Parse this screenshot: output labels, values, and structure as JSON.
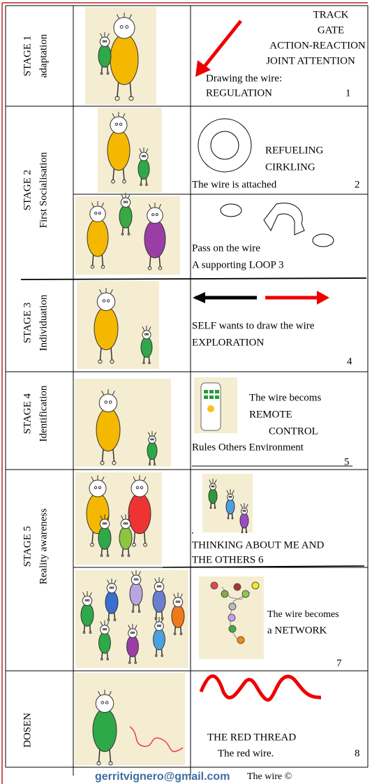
{
  "stages": [
    {
      "title": "STAGE 1",
      "subtitle": "adaptation"
    },
    {
      "title": "STAGE 2",
      "subtitle": "First  Socialisation"
    },
    {
      "title": "STAGE 3",
      "subtitle": "Individuation"
    },
    {
      "title": "STAGE 4",
      "subtitle": "Identification"
    },
    {
      "title": "STAGE 5",
      "subtitle": "Reality awareness"
    },
    {
      "title": "DOSEN"
    }
  ],
  "cells": [
    {
      "lines": [
        "TRACK",
        "GATE",
        "ACTION-REACTION",
        "JOINT ATTENTION",
        "Drawing the wire:",
        "REGULATION",
        "1"
      ]
    },
    {
      "lines": [
        "REFUELING",
        "CIRKLING",
        "The wire is attached",
        "2"
      ]
    },
    {
      "lines": [
        "Pass on the wire",
        "A supporting LOOP  3"
      ]
    },
    {
      "lines": [
        "SELF wants to draw the wire",
        "EXPLORATION",
        "4"
      ]
    },
    {
      "lines": [
        "The wire becoms",
        "REMOTE",
        "CONTROL",
        "Rules Others Environment",
        "5"
      ]
    },
    {
      "lines": [
        ".",
        "THINKING ABOUT ME AND",
        "THE OTHERS  6"
      ]
    },
    {
      "lines": [
        "The wire becomes",
        "a NETWORK",
        "7"
      ]
    },
    {
      "lines": [
        "THE RED THREAD",
        "The red wire.",
        "8"
      ]
    }
  ],
  "footer": {
    "email": "gerritvignero@gmail.com",
    "note": "The wire ©"
  }
}
